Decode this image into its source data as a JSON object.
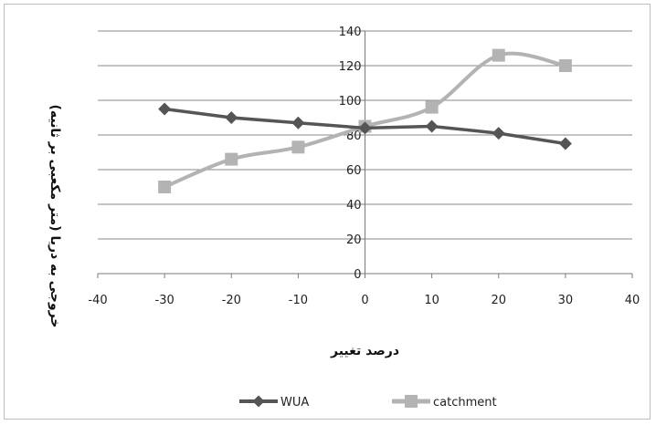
{
  "chart_data": {
    "type": "line",
    "title": "",
    "xlabel": "درصد تغییر",
    "ylabel": "خروجی به دریا (متر مکعبی بر ثانیه)",
    "xlim": [
      -40,
      40
    ],
    "ylim": [
      0,
      140
    ],
    "x_ticks": [
      -40,
      -30,
      -20,
      -10,
      0,
      10,
      20,
      30,
      40
    ],
    "y_ticks": [
      0,
      20,
      40,
      60,
      80,
      100,
      120,
      140
    ],
    "grid": "horizontal",
    "legend_position": "bottom",
    "series": [
      {
        "name": "WUA",
        "color": "#555555",
        "marker": "diamond",
        "smooth": false,
        "x": [
          -30,
          -20,
          -10,
          0,
          10,
          20,
          30
        ],
        "y": [
          95,
          90,
          87,
          84,
          85,
          81,
          75
        ]
      },
      {
        "name": "catchment",
        "color": "#b3b3b3",
        "marker": "square",
        "smooth": true,
        "x": [
          -30,
          -20,
          -10,
          0,
          10,
          20,
          30
        ],
        "y": [
          50,
          66,
          73,
          85,
          96,
          126,
          120
        ]
      }
    ]
  }
}
